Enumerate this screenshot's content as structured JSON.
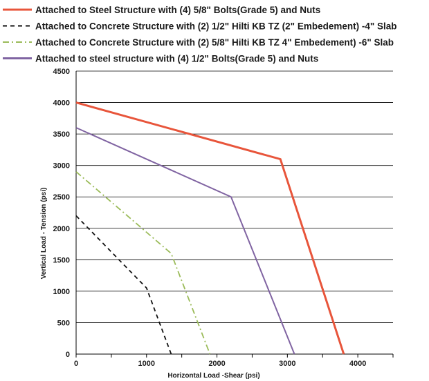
{
  "chart_data": {
    "type": "line",
    "xlabel": "Horizontal Load -Shear (psi)",
    "ylabel": "Vertical Load - Tension (psi)",
    "xlim": [
      0,
      4500
    ],
    "ylim": [
      0,
      4500
    ],
    "xticks": [
      0,
      1000,
      2000,
      3000,
      4000
    ],
    "yticks": [
      0,
      500,
      1000,
      1500,
      2000,
      2500,
      3000,
      3500,
      4000,
      4500
    ],
    "grid": "horizontal",
    "legend_position": "top",
    "series": [
      {
        "name": "Attached to Steel Structure  with (4) 5/8\" Bolts(Grade 5) and Nuts",
        "color": "#e8553b",
        "dash": "solid",
        "points": [
          [
            0,
            4000
          ],
          [
            2900,
            3100
          ],
          [
            3800,
            0
          ]
        ]
      },
      {
        "name": "Attached to Concrete Structure  with (2) 1/2\" Hilti KB TZ (2\" Embedement) -4\" Slab",
        "color": "#111111",
        "dash": "dashed",
        "points": [
          [
            0,
            2200
          ],
          [
            1000,
            1050
          ],
          [
            1350,
            0
          ]
        ]
      },
      {
        "name": "Attached to Concrete Structure  with (2) 5/8\" Hilti KB TZ 4\" Embedement) -6\" Slab",
        "color": "#9bbb59",
        "dash": "dashdot",
        "points": [
          [
            0,
            2900
          ],
          [
            1350,
            1600
          ],
          [
            1900,
            0
          ]
        ]
      },
      {
        "name": "Attached to steel structure  with (4) 1/2\" Bolts(Grade 5) and Nuts",
        "color": "#8064a2",
        "dash": "solid",
        "points": [
          [
            0,
            3600
          ],
          [
            2200,
            2500
          ],
          [
            3100,
            0
          ]
        ]
      }
    ]
  }
}
